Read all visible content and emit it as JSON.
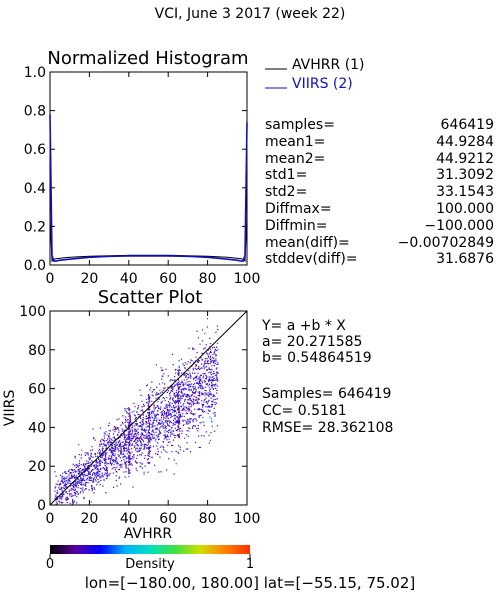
{
  "header": {
    "title": "VCI,  June 3 2017 (week 22)"
  },
  "histogram": {
    "title": "Normalized Histogram",
    "legend": [
      {
        "name": "AVHRR (1)",
        "color": "#000000"
      },
      {
        "name": "VIIRS (2)",
        "color": "#1010c0"
      }
    ]
  },
  "stats": [
    {
      "label": "samples=",
      "value": "646419"
    },
    {
      "label": "mean1=",
      "value": "44.9284"
    },
    {
      "label": "mean2=",
      "value": "44.9212"
    },
    {
      "label": "std1=",
      "value": "31.3092"
    },
    {
      "label": "std2=",
      "value": "33.1543"
    },
    {
      "label": "Diffmax=",
      "value": "100.000"
    },
    {
      "label": "Diffmin=",
      "value": "−100.000"
    },
    {
      "label": "mean(diff)=",
      "value": "−0.00702849"
    },
    {
      "label": "stddev(diff)=",
      "value": "31.6876"
    }
  ],
  "scatter": {
    "title": "Scatter Plot",
    "equation": "Y= a +b * X",
    "a_text": "a= 20.271585",
    "b_text": "b= 0.54864519",
    "samples_text": "Samples= 646419",
    "cc_text": "CC=  0.5181",
    "rmse_text": "RMSE= 28.362108"
  },
  "colorbar": {
    "label": "Density",
    "min": "0",
    "max": "1",
    "colors": [
      "#000000",
      "#5a00a0",
      "#0000ff",
      "#00b0ff",
      "#00e0c0",
      "#40e040",
      "#d0e000",
      "#ff8000",
      "#ff3000"
    ]
  },
  "footer": {
    "lon_text": "lon=[−180.00, 180.00]",
    "lat_text": "lat=[−55.15, 75.02]"
  },
  "chart_data": [
    {
      "type": "line",
      "title": "Normalized Histogram",
      "xlim": [
        0,
        100
      ],
      "ylim": [
        0,
        1
      ],
      "x_ticks": [
        "0",
        "20",
        "40",
        "60",
        "80",
        "100"
      ],
      "y_ticks": [
        "0.0",
        "0.2",
        "0.4",
        "0.6",
        "0.8",
        "1.0"
      ],
      "series": [
        {
          "name": "AVHRR (1)",
          "x": [
            0,
            1,
            2,
            3,
            5,
            10,
            20,
            30,
            40,
            50,
            60,
            70,
            80,
            90,
            95,
            97,
            98,
            99,
            100
          ],
          "y": [
            0.25,
            0.02,
            0.03,
            0.032,
            0.035,
            0.04,
            0.045,
            0.048,
            0.05,
            0.05,
            0.05,
            0.048,
            0.045,
            0.04,
            0.035,
            0.032,
            0.03,
            0.02,
            0.26
          ]
        },
        {
          "name": "VIIRS (2)",
          "x": [
            0,
            1,
            2,
            3,
            5,
            10,
            20,
            30,
            40,
            50,
            60,
            70,
            80,
            90,
            95,
            97,
            98,
            99,
            100
          ],
          "y": [
            0.78,
            0.05,
            0.02,
            0.02,
            0.025,
            0.03,
            0.04,
            0.045,
            0.047,
            0.047,
            0.047,
            0.045,
            0.04,
            0.03,
            0.025,
            0.02,
            0.02,
            0.05,
            0.74
          ]
        }
      ]
    },
    {
      "type": "scatter",
      "title": "Scatter Plot",
      "xlabel": "AVHRR",
      "ylabel": "VIIRS",
      "xlim": [
        0,
        100
      ],
      "ylim": [
        0,
        100
      ],
      "x_ticks": [
        "0",
        "20",
        "40",
        "60",
        "80",
        "100"
      ],
      "y_ticks": [
        "0",
        "20",
        "40",
        "60",
        "80",
        "100"
      ],
      "fit": {
        "a": 20.271585,
        "b": 0.54864519
      },
      "identity_line": true,
      "cluster": {
        "x_range": [
          2,
          85
        ],
        "approx_slope": 0.75,
        "approx_intercept": 3,
        "spread": 9
      }
    }
  ]
}
